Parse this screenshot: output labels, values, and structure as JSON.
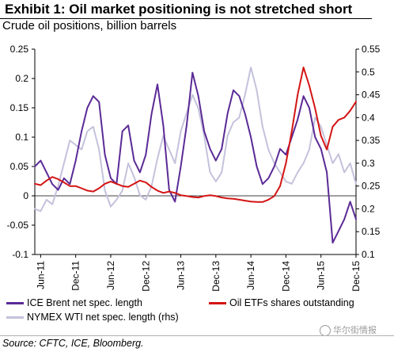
{
  "header": {
    "title": "Exhibit 1: Oil market positioning is not stretched short",
    "subtitle": "Crude oil positions, billion barrels"
  },
  "source": "Source: CFTC, ICE, Bloomberg.",
  "watermark": "华尔街情报",
  "colors": {
    "brent": "#5b2a96",
    "wti": "#c4c2dc",
    "etf": "#d41414",
    "axis": "#000000"
  },
  "chart_data": {
    "type": "line",
    "x_tick_labels": [
      "Jun-11",
      "Dec-11",
      "Jun-12",
      "Dec-12",
      "Jun-13",
      "Dec-13",
      "Jun-14",
      "Dec-14",
      "Jun-15",
      "Dec-15"
    ],
    "x_range": [
      "2011-05",
      "2015-12"
    ],
    "y_left": {
      "ylim": [
        -0.1,
        0.25
      ],
      "ticks": [
        "-0.1",
        "-0.05",
        "0",
        "0.05",
        "0.1",
        "0.15",
        "0.2",
        "0.25"
      ]
    },
    "y_right": {
      "ylim": [
        0.1,
        0.55
      ],
      "ticks": [
        "0.1",
        "0.15",
        "0.2",
        "0.25",
        "0.3",
        "0.35",
        "0.4",
        "0.45",
        "0.5",
        "0.55"
      ]
    },
    "legend_position": "bottom",
    "series": [
      {
        "name": "ICE Brent net spec. length",
        "axis": "left",
        "color_key": "brent",
        "points": [
          [
            "2011-05",
            0.05
          ],
          [
            "2011-06",
            0.06
          ],
          [
            "2011-07",
            0.04
          ],
          [
            "2011-08",
            0.02
          ],
          [
            "2011-09",
            0.01
          ],
          [
            "2011-10",
            0.03
          ],
          [
            "2011-11",
            0.02
          ],
          [
            "2011-12",
            0.06
          ],
          [
            "2012-01",
            0.11
          ],
          [
            "2012-02",
            0.15
          ],
          [
            "2012-03",
            0.17
          ],
          [
            "2012-04",
            0.16
          ],
          [
            "2012-05",
            0.07
          ],
          [
            "2012-06",
            0.03
          ],
          [
            "2012-07",
            0.02
          ],
          [
            "2012-08",
            0.11
          ],
          [
            "2012-09",
            0.12
          ],
          [
            "2012-10",
            0.06
          ],
          [
            "2012-11",
            0.04
          ],
          [
            "2012-12",
            0.07
          ],
          [
            "2013-01",
            0.14
          ],
          [
            "2013-02",
            0.19
          ],
          [
            "2013-03",
            0.12
          ],
          [
            "2013-04",
            0.01
          ],
          [
            "2013-05",
            -0.01
          ],
          [
            "2013-06",
            0.05
          ],
          [
            "2013-07",
            0.12
          ],
          [
            "2013-08",
            0.21
          ],
          [
            "2013-09",
            0.17
          ],
          [
            "2013-10",
            0.11
          ],
          [
            "2013-11",
            0.08
          ],
          [
            "2013-12",
            0.06
          ],
          [
            "2014-01",
            0.08
          ],
          [
            "2014-02",
            0.14
          ],
          [
            "2014-03",
            0.18
          ],
          [
            "2014-04",
            0.17
          ],
          [
            "2014-05",
            0.14
          ],
          [
            "2014-06",
            0.1
          ],
          [
            "2014-07",
            0.05
          ],
          [
            "2014-08",
            0.02
          ],
          [
            "2014-09",
            0.03
          ],
          [
            "2014-10",
            0.05
          ],
          [
            "2014-11",
            0.08
          ],
          [
            "2014-12",
            0.07
          ],
          [
            "2015-01",
            0.1
          ],
          [
            "2015-02",
            0.13
          ],
          [
            "2015-03",
            0.17
          ],
          [
            "2015-04",
            0.15
          ],
          [
            "2015-05",
            0.1
          ],
          [
            "2015-06",
            0.08
          ],
          [
            "2015-07",
            0.04
          ],
          [
            "2015-08",
            -0.08
          ],
          [
            "2015-09",
            -0.06
          ],
          [
            "2015-10",
            -0.04
          ],
          [
            "2015-11",
            -0.01
          ],
          [
            "2015-12",
            -0.04
          ]
        ]
      },
      {
        "name": "Oil ETFs shares outstanding",
        "axis": "right",
        "color_key": "etf",
        "points": [
          [
            "2011-05",
            0.255
          ],
          [
            "2011-06",
            0.252
          ],
          [
            "2011-07",
            0.262
          ],
          [
            "2011-08",
            0.27
          ],
          [
            "2011-09",
            0.265
          ],
          [
            "2011-10",
            0.258
          ],
          [
            "2011-11",
            0.25
          ],
          [
            "2011-12",
            0.25
          ],
          [
            "2012-01",
            0.245
          ],
          [
            "2012-02",
            0.24
          ],
          [
            "2012-03",
            0.238
          ],
          [
            "2012-04",
            0.245
          ],
          [
            "2012-05",
            0.255
          ],
          [
            "2012-06",
            0.26
          ],
          [
            "2012-07",
            0.255
          ],
          [
            "2012-08",
            0.25
          ],
          [
            "2012-09",
            0.248
          ],
          [
            "2012-10",
            0.255
          ],
          [
            "2012-11",
            0.262
          ],
          [
            "2012-12",
            0.258
          ],
          [
            "2013-01",
            0.248
          ],
          [
            "2013-02",
            0.24
          ],
          [
            "2013-03",
            0.235
          ],
          [
            "2013-04",
            0.238
          ],
          [
            "2013-05",
            0.235
          ],
          [
            "2013-06",
            0.23
          ],
          [
            "2013-07",
            0.228
          ],
          [
            "2013-08",
            0.226
          ],
          [
            "2013-09",
            0.225
          ],
          [
            "2013-10",
            0.228
          ],
          [
            "2013-11",
            0.23
          ],
          [
            "2013-12",
            0.228
          ],
          [
            "2014-01",
            0.225
          ],
          [
            "2014-02",
            0.223
          ],
          [
            "2014-03",
            0.222
          ],
          [
            "2014-04",
            0.22
          ],
          [
            "2014-05",
            0.218
          ],
          [
            "2014-06",
            0.216
          ],
          [
            "2014-07",
            0.215
          ],
          [
            "2014-08",
            0.215
          ],
          [
            "2014-09",
            0.22
          ],
          [
            "2014-10",
            0.228
          ],
          [
            "2014-11",
            0.25
          ],
          [
            "2014-12",
            0.3
          ],
          [
            "2015-01",
            0.37
          ],
          [
            "2015-02",
            0.45
          ],
          [
            "2015-03",
            0.51
          ],
          [
            "2015-04",
            0.47
          ],
          [
            "2015-05",
            0.42
          ],
          [
            "2015-06",
            0.36
          ],
          [
            "2015-07",
            0.33
          ],
          [
            "2015-08",
            0.38
          ],
          [
            "2015-09",
            0.395
          ],
          [
            "2015-10",
            0.4
          ],
          [
            "2015-11",
            0.415
          ],
          [
            "2015-12",
            0.435
          ]
        ]
      },
      {
        "name": "NYMEX WTI net spec. length (rhs)",
        "axis": "right",
        "color_key": "wti",
        "points": [
          [
            "2011-05",
            0.2
          ],
          [
            "2011-06",
            0.195
          ],
          [
            "2011-07",
            0.22
          ],
          [
            "2011-08",
            0.21
          ],
          [
            "2011-09",
            0.25
          ],
          [
            "2011-10",
            0.3
          ],
          [
            "2011-11",
            0.35
          ],
          [
            "2011-12",
            0.34
          ],
          [
            "2012-01",
            0.33
          ],
          [
            "2012-02",
            0.37
          ],
          [
            "2012-03",
            0.38
          ],
          [
            "2012-04",
            0.33
          ],
          [
            "2012-05",
            0.24
          ],
          [
            "2012-06",
            0.205
          ],
          [
            "2012-07",
            0.22
          ],
          [
            "2012-08",
            0.24
          ],
          [
            "2012-09",
            0.3
          ],
          [
            "2012-10",
            0.27
          ],
          [
            "2012-11",
            0.23
          ],
          [
            "2012-12",
            0.22
          ],
          [
            "2013-01",
            0.25
          ],
          [
            "2013-02",
            0.31
          ],
          [
            "2013-03",
            0.36
          ],
          [
            "2013-04",
            0.33
          ],
          [
            "2013-05",
            0.3
          ],
          [
            "2013-06",
            0.37
          ],
          [
            "2013-07",
            0.41
          ],
          [
            "2013-08",
            0.45
          ],
          [
            "2013-09",
            0.42
          ],
          [
            "2013-10",
            0.36
          ],
          [
            "2013-11",
            0.28
          ],
          [
            "2013-12",
            0.26
          ],
          [
            "2014-01",
            0.28
          ],
          [
            "2014-02",
            0.36
          ],
          [
            "2014-03",
            0.39
          ],
          [
            "2014-04",
            0.4
          ],
          [
            "2014-05",
            0.45
          ],
          [
            "2014-06",
            0.51
          ],
          [
            "2014-07",
            0.46
          ],
          [
            "2014-08",
            0.38
          ],
          [
            "2014-09",
            0.33
          ],
          [
            "2014-10",
            0.3
          ],
          [
            "2014-11",
            0.28
          ],
          [
            "2014-12",
            0.26
          ],
          [
            "2015-01",
            0.255
          ],
          [
            "2015-02",
            0.28
          ],
          [
            "2015-03",
            0.3
          ],
          [
            "2015-04",
            0.33
          ],
          [
            "2015-05",
            0.4
          ],
          [
            "2015-06",
            0.38
          ],
          [
            "2015-07",
            0.34
          ],
          [
            "2015-08",
            0.3
          ],
          [
            "2015-09",
            0.32
          ],
          [
            "2015-10",
            0.28
          ],
          [
            "2015-11",
            0.3
          ],
          [
            "2015-12",
            0.255
          ]
        ]
      }
    ]
  }
}
